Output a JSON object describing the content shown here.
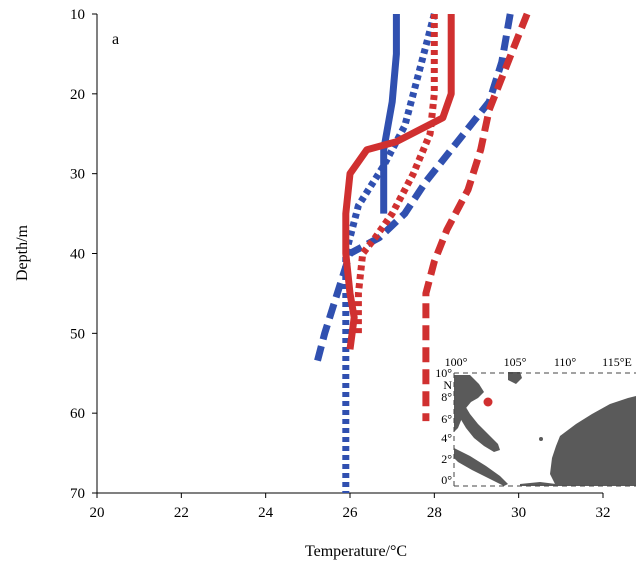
{
  "chart_data": {
    "type": "line",
    "panel_label": "a",
    "xlabel": "Temperature/°C",
    "ylabel": "Depth/m",
    "xlim": [
      20,
      32
    ],
    "ylim": [
      10,
      70
    ],
    "y_inverted": true,
    "x_ticks": [
      "20",
      "22",
      "24",
      "26",
      "28",
      "30",
      "32"
    ],
    "y_ticks": [
      "10",
      "20",
      "30",
      "40",
      "50",
      "60",
      "70"
    ],
    "grid": false,
    "series": [
      {
        "color": "#3050b0",
        "style": "solid",
        "points": [
          [
            27.1,
            10
          ],
          [
            27.1,
            15
          ],
          [
            27.0,
            21
          ],
          [
            26.8,
            27
          ],
          [
            26.8,
            35
          ]
        ]
      },
      {
        "color": "#3050b0",
        "style": "dotted",
        "points": [
          [
            28.0,
            10
          ],
          [
            27.8,
            14
          ],
          [
            27.5,
            20
          ],
          [
            27.3,
            24
          ],
          [
            26.8,
            29
          ],
          [
            26.2,
            34
          ],
          [
            25.9,
            40
          ],
          [
            25.9,
            50
          ],
          [
            25.9,
            60
          ],
          [
            25.9,
            70
          ]
        ]
      },
      {
        "color": "#3050b0",
        "style": "dashed",
        "points": [
          [
            29.8,
            10
          ],
          [
            29.6,
            16
          ],
          [
            29.3,
            21
          ],
          [
            28.4,
            27
          ],
          [
            27.8,
            31
          ],
          [
            27.3,
            35
          ],
          [
            26.7,
            38
          ],
          [
            26.0,
            40
          ],
          [
            25.7,
            45
          ],
          [
            25.4,
            50
          ],
          [
            25.2,
            54
          ]
        ]
      },
      {
        "color": "#d03030",
        "style": "solid",
        "points": [
          [
            28.4,
            10
          ],
          [
            28.4,
            15
          ],
          [
            28.4,
            20
          ],
          [
            28.2,
            23
          ],
          [
            27.1,
            26
          ],
          [
            26.4,
            27
          ],
          [
            26.0,
            30
          ],
          [
            25.9,
            35
          ],
          [
            25.9,
            40
          ],
          [
            26.0,
            45
          ],
          [
            26.1,
            48
          ],
          [
            26.0,
            52
          ]
        ]
      },
      {
        "color": "#d03030",
        "style": "dotted",
        "points": [
          [
            28.0,
            10
          ],
          [
            28.0,
            15
          ],
          [
            28.0,
            20
          ],
          [
            27.9,
            25
          ],
          [
            27.5,
            30
          ],
          [
            27.0,
            35
          ],
          [
            26.6,
            38
          ],
          [
            26.3,
            40
          ],
          [
            26.2,
            45
          ],
          [
            26.2,
            50
          ]
        ]
      },
      {
        "color": "#d03030",
        "style": "dashed",
        "points": [
          [
            30.2,
            10
          ],
          [
            29.9,
            14
          ],
          [
            29.6,
            18
          ],
          [
            29.3,
            22
          ],
          [
            29.1,
            27
          ],
          [
            28.8,
            32
          ],
          [
            28.3,
            37
          ],
          [
            28.0,
            41
          ],
          [
            27.8,
            45
          ],
          [
            27.8,
            50
          ],
          [
            27.8,
            55
          ],
          [
            27.8,
            61
          ]
        ]
      }
    ]
  },
  "inset_map": {
    "lon_labels": [
      "100°",
      "105°",
      "110°",
      "115°E"
    ],
    "lat_labels": [
      "10°",
      "N",
      "8°",
      "6°",
      "4°",
      "2°",
      "0°"
    ],
    "land_color": "#5a5a5a",
    "site_color": "#d03030"
  }
}
